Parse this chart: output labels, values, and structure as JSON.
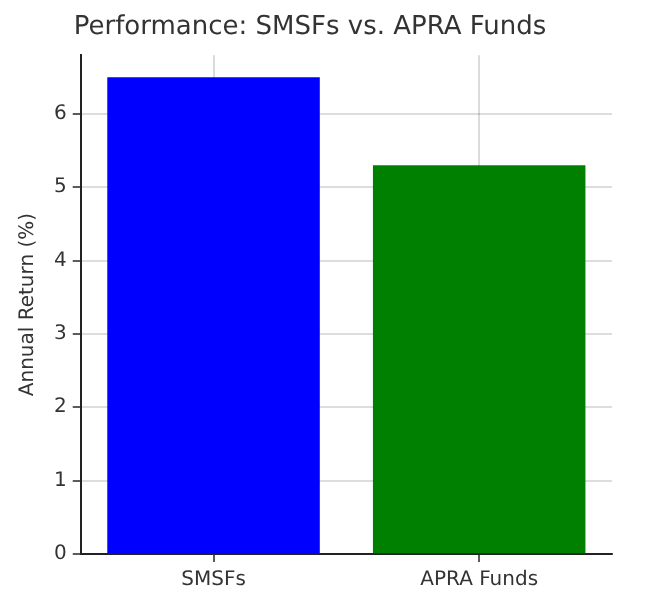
{
  "chart_data": {
    "type": "bar",
    "title": "Performance: SMSFs vs. APRA Funds",
    "ylabel": "Annual Return (%)",
    "categories": [
      "SMSFs",
      "APRA Funds"
    ],
    "values": [
      6.5,
      5.3
    ],
    "colors": [
      "#0000ff",
      "#008000"
    ],
    "ylim": [
      0,
      6.8
    ],
    "yticks": [
      0,
      1,
      2,
      3,
      4,
      5,
      6
    ],
    "grid": true
  }
}
